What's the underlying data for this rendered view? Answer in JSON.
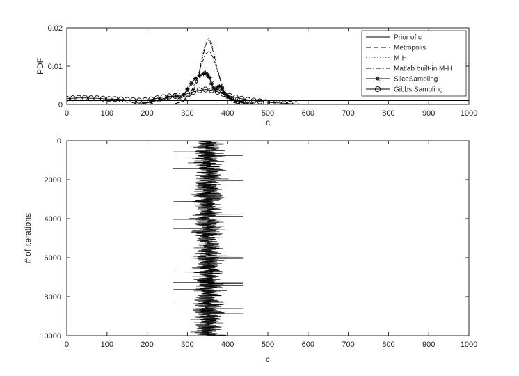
{
  "chart_data": [
    {
      "type": "line",
      "xlabel": "c",
      "ylabel": "PDF",
      "xlim": [
        0,
        1000
      ],
      "ylim": [
        0,
        0.02
      ],
      "xticks": [
        0,
        100,
        200,
        300,
        400,
        500,
        600,
        700,
        800,
        900,
        1000
      ],
      "yticks": [
        0,
        0.01,
        0.02
      ],
      "ytick_labels": [
        "0",
        "0.01",
        "0.02"
      ],
      "grid": false,
      "legend": "top-right",
      "series": [
        {
          "name": "Prior of c",
          "style": "solid",
          "x": [
            0,
            1000
          ],
          "y": [
            0.001,
            0.001
          ]
        },
        {
          "name": "Metropolis",
          "style": "dashed",
          "x": [
            270,
            290,
            310,
            325,
            335,
            345,
            352,
            360,
            370,
            385,
            400,
            415,
            430
          ],
          "y": [
            0.0002,
            0.0008,
            0.0025,
            0.006,
            0.011,
            0.0155,
            0.0168,
            0.0155,
            0.011,
            0.005,
            0.0018,
            0.0005,
            0.0001
          ]
        },
        {
          "name": "M-H",
          "style": "dotted",
          "x": [
            270,
            290,
            310,
            325,
            335,
            345,
            352,
            360,
            370,
            385,
            400,
            415,
            430
          ],
          "y": [
            0.0002,
            0.0009,
            0.0028,
            0.0065,
            0.0115,
            0.016,
            0.0173,
            0.016,
            0.0115,
            0.0052,
            0.0018,
            0.0005,
            0.0001
          ]
        },
        {
          "name": "Matlab built-in M-H",
          "style": "dashdot",
          "x": [
            270,
            290,
            310,
            325,
            335,
            345,
            355,
            365,
            375,
            390,
            405,
            420,
            435
          ],
          "y": [
            0.0002,
            0.001,
            0.0035,
            0.007,
            0.0105,
            0.0132,
            0.014,
            0.012,
            0.0085,
            0.0045,
            0.0018,
            0.0006,
            0.0001
          ]
        },
        {
          "name": "SliceSampling",
          "style": "solid",
          "marker": "star",
          "x": [
            170,
            190,
            210,
            230,
            250,
            270,
            280,
            290,
            300,
            310,
            320,
            330,
            340,
            345,
            350,
            355,
            360,
            365,
            370,
            375,
            380,
            385,
            390,
            395,
            400,
            410,
            420,
            430,
            440,
            450,
            460
          ],
          "y": [
            0.0001,
            0.0002,
            0.0006,
            0.0012,
            0.0018,
            0.0022,
            0.0018,
            0.0025,
            0.004,
            0.0055,
            0.0068,
            0.0075,
            0.008,
            0.0082,
            0.0078,
            0.007,
            0.0055,
            0.0042,
            0.0038,
            0.0045,
            0.0048,
            0.0042,
            0.0032,
            0.0025,
            0.002,
            0.0014,
            0.001,
            0.0007,
            0.0004,
            0.0002,
            0.0001
          ]
        },
        {
          "name": "Gibbs Sampling",
          "style": "solid",
          "marker": "circle",
          "x": [
            0,
            15,
            30,
            45,
            60,
            75,
            90,
            105,
            120,
            135,
            150,
            165,
            180,
            195,
            210,
            225,
            240,
            255,
            270,
            285,
            300,
            315,
            330,
            345,
            360,
            375,
            390,
            405,
            420,
            435,
            450,
            465,
            480,
            495,
            510,
            525,
            540,
            555,
            570
          ],
          "y": [
            0.0015,
            0.0016,
            0.0017,
            0.0017,
            0.0016,
            0.0016,
            0.0015,
            0.0014,
            0.0014,
            0.0013,
            0.0012,
            0.0011,
            0.001,
            0.0011,
            0.0013,
            0.0016,
            0.0019,
            0.0021,
            0.0022,
            0.0024,
            0.0028,
            0.0033,
            0.0037,
            0.0039,
            0.0037,
            0.0033,
            0.0027,
            0.0022,
            0.0018,
            0.0015,
            0.0012,
            0.001,
            0.0008,
            0.0006,
            0.0005,
            0.0004,
            0.0003,
            0.0002,
            0.0001
          ]
        }
      ]
    },
    {
      "type": "line",
      "xlabel": "c",
      "ylabel": "# of iterations",
      "xlim": [
        0,
        1000
      ],
      "ylim": [
        0,
        10000
      ],
      "y_reversed": true,
      "xticks": [
        0,
        100,
        200,
        300,
        400,
        500,
        600,
        700,
        800,
        900,
        1000
      ],
      "yticks": [
        0,
        2000,
        4000,
        6000,
        8000,
        10000
      ],
      "grid": false,
      "trace": {
        "start": 1000,
        "iterations": 10000,
        "center": 352,
        "spread": 25,
        "min": 230,
        "max": 450
      }
    }
  ]
}
